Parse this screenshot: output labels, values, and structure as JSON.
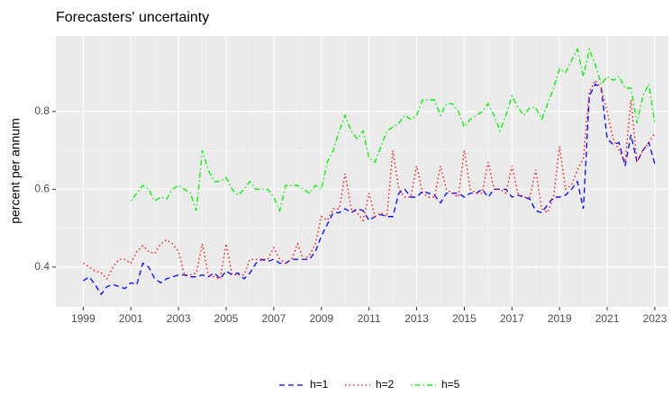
{
  "chart_data": {
    "type": "line",
    "title": "Forecasters' uncertainty",
    "y_label": "percent per annum",
    "x": [
      1999,
      1999.25,
      1999.5,
      1999.75,
      2000,
      2000.25,
      2000.5,
      2000.75,
      2001,
      2001.25,
      2001.5,
      2001.75,
      2002,
      2002.25,
      2002.5,
      2002.75,
      2003,
      2003.25,
      2003.5,
      2003.75,
      2004,
      2004.25,
      2004.5,
      2004.75,
      2005,
      2005.25,
      2005.5,
      2005.75,
      2006,
      2006.25,
      2006.5,
      2006.75,
      2007,
      2007.25,
      2007.5,
      2007.75,
      2008,
      2008.25,
      2008.5,
      2008.75,
      2009,
      2009.25,
      2009.5,
      2009.75,
      2010,
      2010.25,
      2010.5,
      2010.75,
      2011,
      2011.25,
      2011.5,
      2011.75,
      2012,
      2012.25,
      2012.5,
      2012.75,
      2013,
      2013.25,
      2013.5,
      2013.75,
      2014,
      2014.25,
      2014.5,
      2014.75,
      2015,
      2015.25,
      2015.5,
      2015.75,
      2016,
      2016.25,
      2016.5,
      2016.75,
      2017,
      2017.25,
      2017.5,
      2017.75,
      2018,
      2018.25,
      2018.5,
      2018.75,
      2019,
      2019.25,
      2019.5,
      2019.75,
      2020,
      2020.25,
      2020.5,
      2020.75,
      2021,
      2021.25,
      2021.5,
      2021.75,
      2022,
      2022.25,
      2022.5,
      2022.75,
      2023
    ],
    "series": [
      {
        "name": "h=1",
        "color": "#0000ff",
        "linetype": "dashed",
        "values": [
          0.365,
          0.375,
          0.355,
          0.33,
          0.35,
          0.355,
          0.35,
          0.345,
          0.36,
          0.355,
          0.41,
          0.4,
          0.37,
          0.36,
          0.37,
          0.375,
          0.38,
          0.38,
          0.375,
          0.375,
          0.38,
          0.375,
          0.385,
          0.37,
          0.39,
          0.38,
          0.385,
          0.37,
          0.385,
          0.41,
          0.42,
          0.415,
          0.42,
          0.41,
          0.41,
          0.42,
          0.42,
          0.42,
          0.42,
          0.44,
          0.48,
          0.51,
          0.54,
          0.54,
          0.55,
          0.54,
          0.55,
          0.545,
          0.52,
          0.53,
          0.535,
          0.53,
          0.53,
          0.59,
          0.6,
          0.58,
          0.58,
          0.595,
          0.59,
          0.585,
          0.565,
          0.59,
          0.59,
          0.59,
          0.58,
          0.59,
          0.59,
          0.6,
          0.58,
          0.6,
          0.6,
          0.6,
          0.58,
          0.585,
          0.58,
          0.575,
          0.545,
          0.54,
          0.56,
          0.58,
          0.58,
          0.585,
          0.6,
          0.62,
          0.55,
          0.84,
          0.87,
          0.86,
          0.73,
          0.715,
          0.72,
          0.66,
          0.74,
          0.67,
          0.7,
          0.72,
          0.665
        ]
      },
      {
        "name": "h=2",
        "color": "#ff0000",
        "linetype": "dotted",
        "values": [
          0.41,
          0.4,
          0.39,
          0.385,
          0.37,
          0.4,
          0.42,
          0.42,
          0.41,
          0.44,
          0.455,
          0.44,
          0.435,
          0.46,
          0.47,
          0.46,
          0.44,
          0.38,
          0.38,
          0.385,
          0.46,
          0.38,
          0.375,
          0.37,
          0.46,
          0.38,
          0.38,
          0.38,
          0.42,
          0.42,
          0.42,
          0.42,
          0.45,
          0.42,
          0.41,
          0.42,
          0.46,
          0.42,
          0.43,
          0.46,
          0.53,
          0.52,
          0.55,
          0.55,
          0.64,
          0.55,
          0.54,
          0.52,
          0.59,
          0.53,
          0.54,
          0.53,
          0.7,
          0.6,
          0.58,
          0.58,
          0.66,
          0.59,
          0.58,
          0.58,
          0.66,
          0.6,
          0.59,
          0.58,
          0.7,
          0.6,
          0.59,
          0.59,
          0.67,
          0.6,
          0.6,
          0.59,
          0.66,
          0.59,
          0.58,
          0.58,
          0.65,
          0.55,
          0.54,
          0.58,
          0.71,
          0.6,
          0.61,
          0.65,
          0.68,
          0.85,
          0.88,
          0.86,
          0.8,
          0.73,
          0.7,
          0.67,
          0.83,
          0.67,
          0.7,
          0.72,
          0.745
        ]
      },
      {
        "name": "h=5",
        "color": "#00ee00",
        "linetype": "dotdash",
        "values": [
          null,
          null,
          null,
          null,
          null,
          null,
          null,
          null,
          0.57,
          0.59,
          0.61,
          0.6,
          0.57,
          0.58,
          0.575,
          0.6,
          0.61,
          0.6,
          0.59,
          0.545,
          0.7,
          0.65,
          0.62,
          0.62,
          0.63,
          0.6,
          0.585,
          0.6,
          0.62,
          0.6,
          0.6,
          0.6,
          0.58,
          0.545,
          0.61,
          0.61,
          0.61,
          0.6,
          0.59,
          0.61,
          0.6,
          0.67,
          0.7,
          0.75,
          0.79,
          0.75,
          0.73,
          0.75,
          0.68,
          0.67,
          0.71,
          0.75,
          0.76,
          0.77,
          0.79,
          0.78,
          0.79,
          0.83,
          0.83,
          0.83,
          0.79,
          0.82,
          0.82,
          0.8,
          0.76,
          0.78,
          0.79,
          0.8,
          0.82,
          0.79,
          0.75,
          0.79,
          0.84,
          0.81,
          0.79,
          0.81,
          0.81,
          0.78,
          0.82,
          0.86,
          0.91,
          0.9,
          0.93,
          0.96,
          0.89,
          0.96,
          0.92,
          0.87,
          0.89,
          0.88,
          0.89,
          0.86,
          0.86,
          0.77,
          0.84,
          0.87,
          0.77
        ]
      }
    ],
    "xlim": [
      1997.85,
      2023.57
    ],
    "xticks": [
      1999,
      2001,
      2003,
      2005,
      2007,
      2009,
      2011,
      2013,
      2015,
      2017,
      2019,
      2021,
      2023
    ],
    "ylim": [
      0.298,
      0.994
    ],
    "yticks": [
      0.4,
      0.6,
      0.8
    ],
    "grid": true,
    "legend": "bottom"
  }
}
